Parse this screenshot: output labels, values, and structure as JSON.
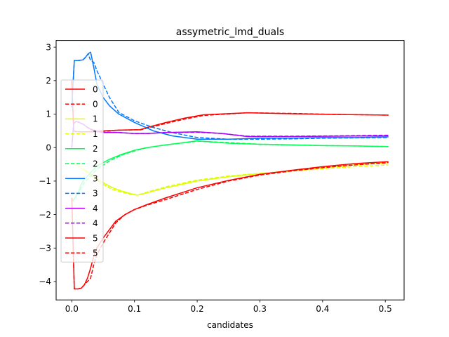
{
  "chart_data": {
    "type": "line",
    "title": "assymetric_lmd_duals",
    "xlabel": "candidates",
    "ylabel": "",
    "xlim": [
      -0.025,
      0.53
    ],
    "ylim": [
      -4.55,
      3.2
    ],
    "xticks": [
      0.0,
      0.1,
      0.2,
      0.3,
      0.4,
      0.5
    ],
    "xtick_labels": [
      "0.0",
      "0.1",
      "0.2",
      "0.3",
      "0.4",
      "0.5"
    ],
    "yticks": [
      -4,
      -3,
      -2,
      -1,
      0,
      1,
      2,
      3
    ],
    "ytick_labels": [
      "−4",
      "−3",
      "−2",
      "−1",
      "0",
      "1",
      "2",
      "3"
    ],
    "grid": false,
    "legend_position": "center-left",
    "series": [
      {
        "name": "0",
        "color": "#ff0000",
        "dash": "solid",
        "x": [
          0.0,
          0.003,
          0.006,
          0.012,
          0.018,
          0.025,
          0.035,
          0.05,
          0.075,
          0.1,
          0.108,
          0.12,
          0.15,
          0.18,
          0.21,
          0.28,
          0.35,
          0.42,
          0.505
        ],
        "y": [
          2.0,
          0.5,
          0.48,
          0.47,
          0.47,
          0.47,
          0.48,
          0.5,
          0.52,
          0.53,
          0.53,
          0.6,
          0.75,
          0.88,
          0.98,
          1.04,
          1.01,
          0.99,
          0.97
        ]
      },
      {
        "name": "0",
        "color": "#ff0000",
        "dash": "dashed",
        "x": [
          0.0,
          0.003,
          0.006,
          0.012,
          0.018,
          0.025,
          0.035,
          0.05,
          0.075,
          0.1,
          0.11,
          0.12,
          0.15,
          0.18,
          0.21,
          0.28,
          0.35,
          0.42,
          0.505
        ],
        "y": [
          2.0,
          0.5,
          0.48,
          0.47,
          0.47,
          0.47,
          0.47,
          0.49,
          0.52,
          0.53,
          0.53,
          0.58,
          0.72,
          0.85,
          0.96,
          1.04,
          1.02,
          0.99,
          0.97
        ]
      },
      {
        "name": "1",
        "color": "#ddff00",
        "dash": "solid",
        "x": [
          0.0,
          0.003,
          0.008,
          0.015,
          0.025,
          0.035,
          0.05,
          0.065,
          0.08,
          0.095,
          0.105,
          0.12,
          0.15,
          0.2,
          0.25,
          0.3,
          0.35,
          0.4,
          0.45,
          0.505
        ],
        "y": [
          -0.4,
          -0.48,
          -0.52,
          -0.6,
          -0.72,
          -0.85,
          -1.05,
          -1.2,
          -1.3,
          -1.38,
          -1.42,
          -1.35,
          -1.2,
          -1.0,
          -0.87,
          -0.78,
          -0.7,
          -0.6,
          -0.52,
          -0.45
        ]
      },
      {
        "name": "1",
        "color": "#ddff00",
        "dash": "dashed",
        "x": [
          0.0,
          0.003,
          0.008,
          0.015,
          0.025,
          0.035,
          0.05,
          0.065,
          0.08,
          0.095,
          0.105,
          0.12,
          0.15,
          0.2,
          0.25,
          0.3,
          0.35,
          0.4,
          0.45,
          0.505
        ],
        "y": [
          -0.4,
          -0.48,
          -0.52,
          -0.62,
          -0.75,
          -0.9,
          -1.1,
          -1.25,
          -1.33,
          -1.4,
          -1.42,
          -1.33,
          -1.17,
          -0.97,
          -0.85,
          -0.77,
          -0.7,
          -0.63,
          -0.57,
          -0.52
        ]
      },
      {
        "name": "2",
        "color": "#00ff55",
        "dash": "solid",
        "x": [
          0.0,
          0.002,
          0.005,
          0.01,
          0.015,
          0.02,
          0.03,
          0.04,
          0.06,
          0.08,
          0.1,
          0.12,
          0.15,
          0.2,
          0.25,
          0.3,
          0.35,
          0.4,
          0.45,
          0.505
        ],
        "y": [
          -1.5,
          -1.6,
          -1.5,
          -1.35,
          -1.1,
          -0.95,
          -0.75,
          -0.55,
          -0.35,
          -0.2,
          -0.08,
          0.0,
          0.08,
          0.2,
          0.13,
          0.1,
          0.08,
          0.06,
          0.05,
          0.03
        ]
      },
      {
        "name": "2",
        "color": "#00ff55",
        "dash": "dashed",
        "x": [
          0.0,
          0.002,
          0.005,
          0.01,
          0.015,
          0.02,
          0.03,
          0.04,
          0.06,
          0.08,
          0.1,
          0.12,
          0.15,
          0.2,
          0.25,
          0.3,
          0.35,
          0.4,
          0.45,
          0.505
        ],
        "y": [
          -1.5,
          -1.6,
          -1.5,
          -1.4,
          -1.2,
          -1.05,
          -0.85,
          -0.65,
          -0.4,
          -0.22,
          -0.1,
          0.0,
          0.08,
          0.19,
          0.15,
          0.1,
          0.08,
          0.06,
          0.05,
          0.03
        ]
      },
      {
        "name": "3",
        "color": "#0077ff",
        "dash": "solid",
        "x": [
          0.0,
          0.004,
          0.01,
          0.018,
          0.022,
          0.026,
          0.03,
          0.035,
          0.04,
          0.05,
          0.06,
          0.075,
          0.1,
          0.13,
          0.16,
          0.2,
          0.25,
          0.3,
          0.35,
          0.4,
          0.45,
          0.505
        ],
        "y": [
          1.2,
          2.6,
          2.6,
          2.62,
          2.7,
          2.8,
          2.85,
          2.4,
          1.9,
          1.5,
          1.25,
          1.0,
          0.75,
          0.5,
          0.35,
          0.25,
          0.25,
          0.28,
          0.28,
          0.3,
          0.3,
          0.32
        ]
      },
      {
        "name": "3",
        "color": "#0077ff",
        "dash": "dashed",
        "x": [
          0.0,
          0.004,
          0.01,
          0.018,
          0.022,
          0.026,
          0.03,
          0.035,
          0.04,
          0.05,
          0.06,
          0.075,
          0.1,
          0.13,
          0.16,
          0.2,
          0.25,
          0.3,
          0.35,
          0.4,
          0.45,
          0.505
        ],
        "y": [
          1.2,
          2.6,
          2.6,
          2.62,
          2.7,
          2.8,
          2.6,
          2.55,
          2.3,
          1.9,
          1.5,
          1.05,
          0.8,
          0.6,
          0.45,
          0.3,
          0.25,
          0.25,
          0.26,
          0.28,
          0.29,
          0.3
        ]
      },
      {
        "name": "4",
        "color": "#aa00ff",
        "dash": "solid",
        "x": [
          0.0,
          0.003,
          0.007,
          0.012,
          0.018,
          0.025,
          0.035,
          0.05,
          0.075,
          0.1,
          0.12,
          0.15,
          0.2,
          0.24,
          0.28,
          0.35,
          0.42,
          0.505
        ],
        "y": [
          0.0,
          0.72,
          0.78,
          0.75,
          0.7,
          0.6,
          0.5,
          0.45,
          0.45,
          0.42,
          0.42,
          0.45,
          0.47,
          0.42,
          0.33,
          0.33,
          0.34,
          0.35
        ]
      },
      {
        "name": "4",
        "color": "#aa00ff",
        "dash": "dashed",
        "x": [
          0.0,
          0.003,
          0.007,
          0.012,
          0.018,
          0.025,
          0.035,
          0.05,
          0.075,
          0.1,
          0.12,
          0.15,
          0.2,
          0.24,
          0.28,
          0.35,
          0.42,
          0.505
        ],
        "y": [
          0.0,
          0.72,
          0.78,
          0.75,
          0.7,
          0.6,
          0.52,
          0.46,
          0.45,
          0.42,
          0.42,
          0.45,
          0.46,
          0.42,
          0.34,
          0.34,
          0.35,
          0.37
        ]
      },
      {
        "name": "5",
        "color": "#ff0000",
        "dash": "solid",
        "x": [
          0.0,
          0.004,
          0.01,
          0.015,
          0.02,
          0.025,
          0.03,
          0.035,
          0.04,
          0.05,
          0.06,
          0.07,
          0.085,
          0.1,
          0.12,
          0.15,
          0.2,
          0.25,
          0.3,
          0.35,
          0.4,
          0.45,
          0.505
        ],
        "y": [
          -1.5,
          -4.22,
          -4.22,
          -4.2,
          -4.1,
          -3.9,
          -3.6,
          -3.25,
          -3.0,
          -2.7,
          -2.45,
          -2.2,
          -2.0,
          -1.85,
          -1.7,
          -1.5,
          -1.2,
          -0.98,
          -0.8,
          -0.68,
          -0.57,
          -0.48,
          -0.42
        ]
      },
      {
        "name": "5",
        "color": "#ff0000",
        "dash": "dashed",
        "x": [
          0.0,
          0.004,
          0.01,
          0.015,
          0.02,
          0.025,
          0.03,
          0.035,
          0.04,
          0.05,
          0.06,
          0.07,
          0.085,
          0.1,
          0.12,
          0.15,
          0.2,
          0.25,
          0.3,
          0.35,
          0.4,
          0.45,
          0.505
        ],
        "y": [
          -1.5,
          -4.22,
          -4.22,
          -4.2,
          -4.1,
          -4.0,
          -3.9,
          -3.5,
          -3.2,
          -2.85,
          -2.55,
          -2.25,
          -2.0,
          -1.85,
          -1.72,
          -1.55,
          -1.25,
          -1.0,
          -0.82,
          -0.7,
          -0.6,
          -0.52,
          -0.45
        ]
      }
    ]
  }
}
